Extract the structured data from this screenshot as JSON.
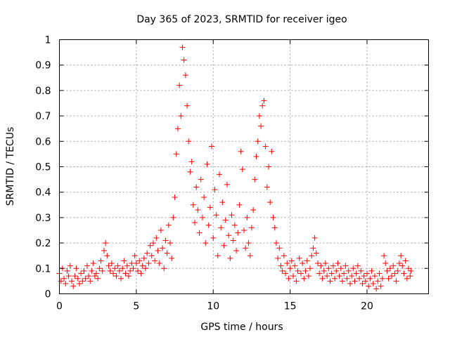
{
  "chart_data": {
    "type": "scatter",
    "title": "Day 365 of 2023, SRMTID for receiver igeo",
    "xlabel": "GPS time / hours",
    "ylabel": "SRMTID / TECUs",
    "xlim": [
      0,
      24
    ],
    "ylim": [
      0,
      1
    ],
    "xticks": [
      0,
      5,
      10,
      15,
      20
    ],
    "xtick_labels": [
      "0",
      "5",
      "10",
      "15",
      "20"
    ],
    "yticks": [
      0,
      0.1,
      0.2,
      0.3,
      0.4,
      0.5,
      0.6,
      0.7,
      0.8,
      0.9,
      1
    ],
    "ytick_labels": [
      "0",
      "0.1",
      "0.2",
      "0.3",
      "0.4",
      "0.5",
      "0.6",
      "0.7",
      "0.8",
      "0.9",
      "1"
    ],
    "grid": true,
    "marker": "plus",
    "series": [
      {
        "name": "SRMTID",
        "color": "#ff0000",
        "points": [
          [
            0.0,
            0.08
          ],
          [
            0.1,
            0.05
          ],
          [
            0.2,
            0.1
          ],
          [
            0.3,
            0.06
          ],
          [
            0.4,
            0.04
          ],
          [
            0.5,
            0.09
          ],
          [
            0.6,
            0.07
          ],
          [
            0.7,
            0.11
          ],
          [
            0.8,
            0.05
          ],
          [
            0.9,
            0.03
          ],
          [
            1.0,
            0.07
          ],
          [
            1.1,
            0.1
          ],
          [
            1.2,
            0.06
          ],
          [
            1.3,
            0.04
          ],
          [
            1.4,
            0.08
          ],
          [
            1.5,
            0.05
          ],
          [
            1.6,
            0.09
          ],
          [
            1.7,
            0.06
          ],
          [
            1.8,
            0.11
          ],
          [
            1.9,
            0.07
          ],
          [
            2.0,
            0.05
          ],
          [
            2.1,
            0.09
          ],
          [
            2.2,
            0.12
          ],
          [
            2.3,
            0.07
          ],
          [
            2.4,
            0.08
          ],
          [
            2.5,
            0.06
          ],
          [
            2.6,
            0.1
          ],
          [
            2.7,
            0.13
          ],
          [
            2.8,
            0.09
          ],
          [
            2.9,
            0.17
          ],
          [
            3.0,
            0.2
          ],
          [
            3.1,
            0.15
          ],
          [
            3.2,
            0.11
          ],
          [
            3.3,
            0.09
          ],
          [
            3.4,
            0.12
          ],
          [
            3.5,
            0.08
          ],
          [
            3.6,
            0.1
          ],
          [
            3.7,
            0.07
          ],
          [
            3.8,
            0.11
          ],
          [
            3.9,
            0.09
          ],
          [
            4.0,
            0.06
          ],
          [
            4.1,
            0.1
          ],
          [
            4.2,
            0.13
          ],
          [
            4.3,
            0.08
          ],
          [
            4.4,
            0.11
          ],
          [
            4.5,
            0.07
          ],
          [
            4.6,
            0.09
          ],
          [
            4.7,
            0.12
          ],
          [
            4.8,
            0.1
          ],
          [
            4.9,
            0.15
          ],
          [
            5.0,
            0.12
          ],
          [
            5.1,
            0.09
          ],
          [
            5.2,
            0.13
          ],
          [
            5.3,
            0.08
          ],
          [
            5.4,
            0.11
          ],
          [
            5.5,
            0.14
          ],
          [
            5.6,
            0.1
          ],
          [
            5.7,
            0.16
          ],
          [
            5.8,
            0.12
          ],
          [
            5.9,
            0.19
          ],
          [
            6.0,
            0.15
          ],
          [
            6.1,
            0.2
          ],
          [
            6.2,
            0.13
          ],
          [
            6.3,
            0.22
          ],
          [
            6.4,
            0.17
          ],
          [
            6.5,
            0.12
          ],
          [
            6.6,
            0.25
          ],
          [
            6.7,
            0.18
          ],
          [
            6.8,
            0.1
          ],
          [
            6.9,
            0.21
          ],
          [
            7.0,
            0.16
          ],
          [
            7.1,
            0.27
          ],
          [
            7.2,
            0.2
          ],
          [
            7.3,
            0.14
          ],
          [
            7.4,
            0.3
          ],
          [
            7.5,
            0.38
          ],
          [
            7.6,
            0.55
          ],
          [
            7.7,
            0.65
          ],
          [
            7.8,
            0.82
          ],
          [
            7.9,
            0.7
          ],
          [
            8.0,
            0.97
          ],
          [
            8.1,
            0.92
          ],
          [
            8.2,
            0.86
          ],
          [
            8.3,
            0.74
          ],
          [
            8.4,
            0.6
          ],
          [
            8.5,
            0.48
          ],
          [
            8.6,
            0.52
          ],
          [
            8.7,
            0.35
          ],
          [
            8.8,
            0.28
          ],
          [
            8.9,
            0.42
          ],
          [
            9.0,
            0.33
          ],
          [
            9.1,
            0.24
          ],
          [
            9.2,
            0.45
          ],
          [
            9.3,
            0.3
          ],
          [
            9.4,
            0.38
          ],
          [
            9.5,
            0.2
          ],
          [
            9.6,
            0.51
          ],
          [
            9.7,
            0.27
          ],
          [
            9.8,
            0.34
          ],
          [
            9.9,
            0.58
          ],
          [
            10.0,
            0.22
          ],
          [
            10.1,
            0.41
          ],
          [
            10.2,
            0.31
          ],
          [
            10.3,
            0.15
          ],
          [
            10.4,
            0.47
          ],
          [
            10.5,
            0.26
          ],
          [
            10.6,
            0.36
          ],
          [
            10.7,
            0.19
          ],
          [
            10.8,
            0.29
          ],
          [
            10.9,
            0.43
          ],
          [
            11.0,
            0.23
          ],
          [
            11.1,
            0.14
          ],
          [
            11.2,
            0.31
          ],
          [
            11.3,
            0.21
          ],
          [
            11.4,
            0.27
          ],
          [
            11.5,
            0.17
          ],
          [
            11.6,
            0.24
          ],
          [
            11.7,
            0.35
          ],
          [
            11.8,
            0.56
          ],
          [
            11.9,
            0.49
          ],
          [
            12.0,
            0.25
          ],
          [
            12.1,
            0.18
          ],
          [
            12.2,
            0.3
          ],
          [
            12.3,
            0.2
          ],
          [
            12.4,
            0.15
          ],
          [
            12.5,
            0.26
          ],
          [
            12.6,
            0.33
          ],
          [
            12.7,
            0.45
          ],
          [
            12.8,
            0.54
          ],
          [
            12.9,
            0.6
          ],
          [
            13.0,
            0.7
          ],
          [
            13.1,
            0.66
          ],
          [
            13.2,
            0.74
          ],
          [
            13.3,
            0.76
          ],
          [
            13.4,
            0.58
          ],
          [
            13.5,
            0.42
          ],
          [
            13.6,
            0.5
          ],
          [
            13.7,
            0.36
          ],
          [
            13.8,
            0.56
          ],
          [
            13.9,
            0.3
          ],
          [
            14.0,
            0.26
          ],
          [
            14.1,
            0.2
          ],
          [
            14.2,
            0.14
          ],
          [
            14.3,
            0.18
          ],
          [
            14.4,
            0.11
          ],
          [
            14.5,
            0.09
          ],
          [
            14.6,
            0.15
          ],
          [
            14.7,
            0.08
          ],
          [
            14.8,
            0.12
          ],
          [
            14.9,
            0.06
          ],
          [
            15.0,
            0.1
          ],
          [
            15.1,
            0.13
          ],
          [
            15.2,
            0.07
          ],
          [
            15.3,
            0.11
          ],
          [
            15.4,
            0.05
          ],
          [
            15.5,
            0.09
          ],
          [
            15.6,
            0.14
          ],
          [
            15.7,
            0.08
          ],
          [
            15.8,
            0.12
          ],
          [
            15.9,
            0.06
          ],
          [
            16.0,
            0.09
          ],
          [
            16.1,
            0.13
          ],
          [
            16.2,
            0.07
          ],
          [
            16.3,
            0.1
          ],
          [
            16.4,
            0.15
          ],
          [
            16.5,
            0.18
          ],
          [
            16.6,
            0.22
          ],
          [
            16.7,
            0.16
          ],
          [
            16.8,
            0.12
          ],
          [
            16.9,
            0.08
          ],
          [
            17.0,
            0.11
          ],
          [
            17.1,
            0.06
          ],
          [
            17.2,
            0.09
          ],
          [
            17.3,
            0.12
          ],
          [
            17.4,
            0.07
          ],
          [
            17.5,
            0.1
          ],
          [
            17.6,
            0.05
          ],
          [
            17.7,
            0.08
          ],
          [
            17.8,
            0.11
          ],
          [
            17.9,
            0.06
          ],
          [
            18.0,
            0.09
          ],
          [
            18.1,
            0.12
          ],
          [
            18.2,
            0.07
          ],
          [
            18.3,
            0.1
          ],
          [
            18.4,
            0.05
          ],
          [
            18.5,
            0.08
          ],
          [
            18.6,
            0.11
          ],
          [
            18.7,
            0.06
          ],
          [
            18.8,
            0.09
          ],
          [
            18.9,
            0.04
          ],
          [
            19.0,
            0.07
          ],
          [
            19.1,
            0.1
          ],
          [
            19.2,
            0.05
          ],
          [
            19.3,
            0.08
          ],
          [
            19.4,
            0.11
          ],
          [
            19.5,
            0.06
          ],
          [
            19.6,
            0.09
          ],
          [
            19.7,
            0.04
          ],
          [
            19.8,
            0.07
          ],
          [
            19.9,
            0.05
          ],
          [
            20.0,
            0.08
          ],
          [
            20.1,
            0.03
          ],
          [
            20.2,
            0.06
          ],
          [
            20.3,
            0.09
          ],
          [
            20.4,
            0.04
          ],
          [
            20.5,
            0.07
          ],
          [
            20.6,
            0.02
          ],
          [
            20.7,
            0.05
          ],
          [
            20.8,
            0.08
          ],
          [
            20.9,
            0.03
          ],
          [
            21.0,
            0.06
          ],
          [
            21.1,
            0.15
          ],
          [
            21.2,
            0.12
          ],
          [
            21.3,
            0.09
          ],
          [
            21.4,
            0.06
          ],
          [
            21.5,
            0.1
          ],
          [
            21.6,
            0.07
          ],
          [
            21.7,
            0.11
          ],
          [
            21.8,
            0.08
          ],
          [
            21.9,
            0.05
          ],
          [
            22.0,
            0.09
          ],
          [
            22.1,
            0.12
          ],
          [
            22.2,
            0.15
          ],
          [
            22.3,
            0.11
          ],
          [
            22.4,
            0.08
          ],
          [
            22.5,
            0.13
          ],
          [
            22.6,
            0.06
          ],
          [
            22.7,
            0.1
          ],
          [
            22.8,
            0.07
          ],
          [
            22.85,
            0.09
          ]
        ]
      }
    ]
  }
}
